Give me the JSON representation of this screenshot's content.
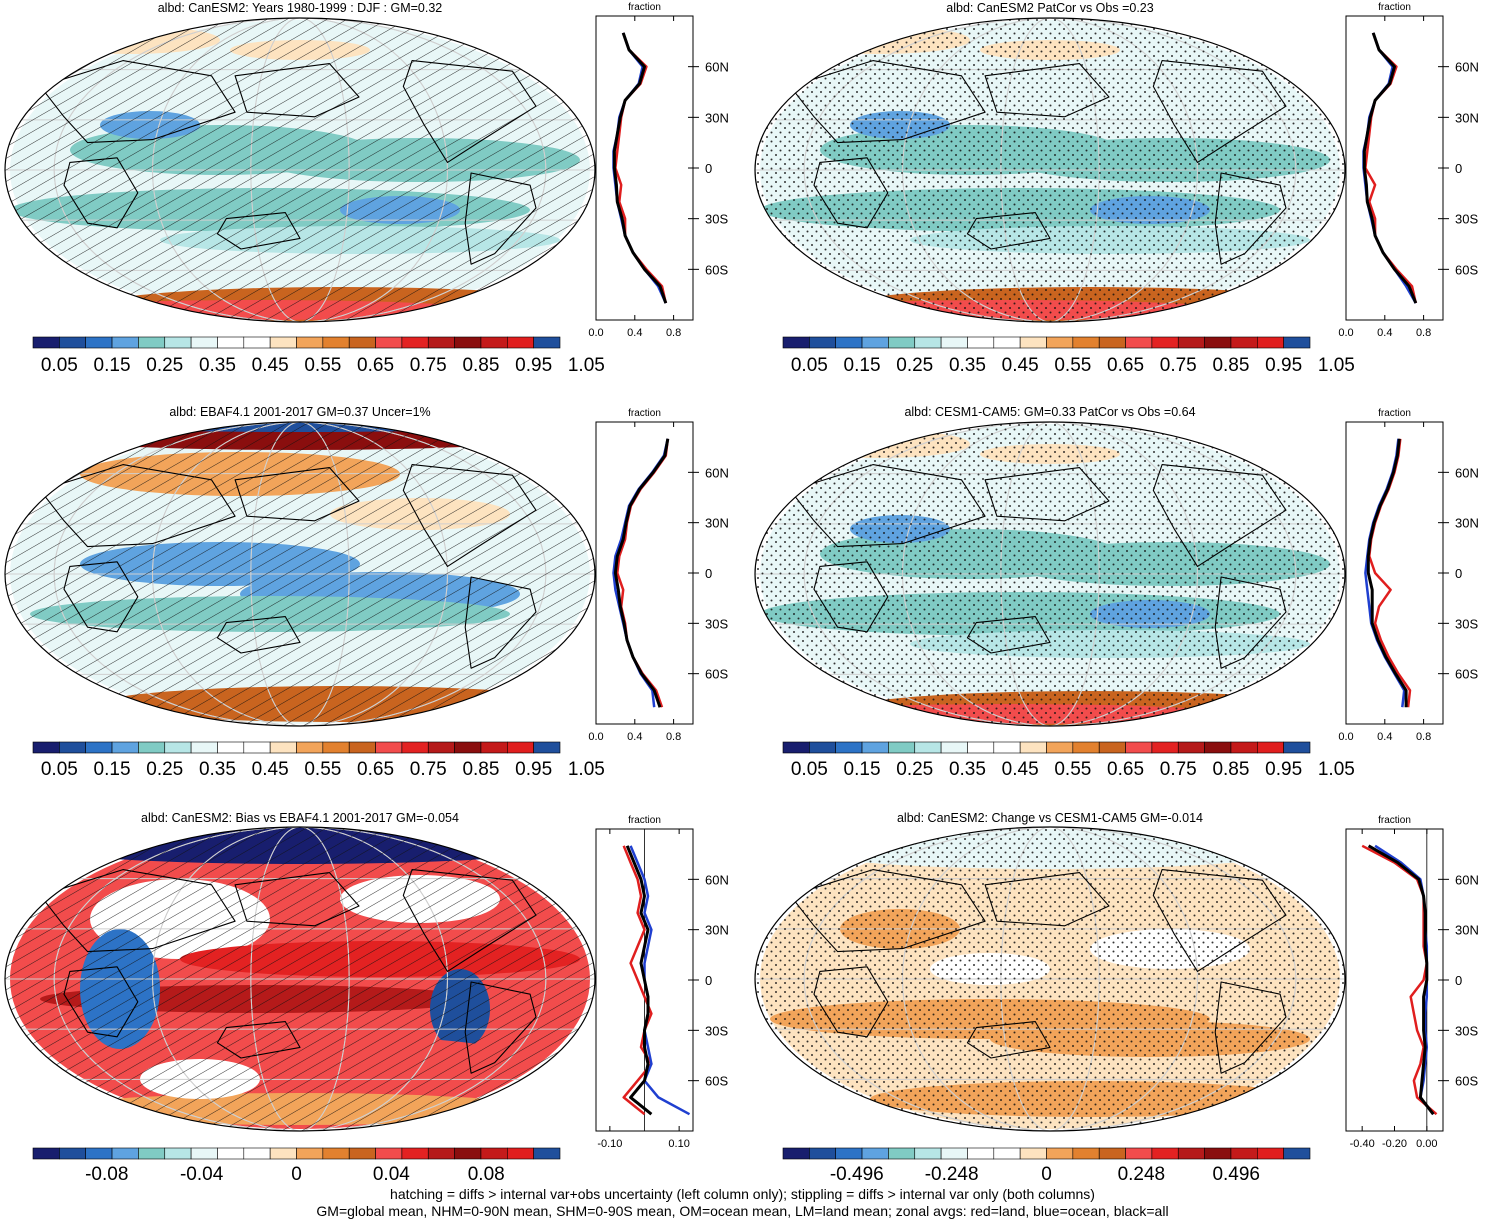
{
  "footnote": {
    "line1": "hatching = diffs > internal var+obs uncertainty (left column only); stippling = diffs > internal var only (both columns)",
    "line2": "GM=global mean, NHM=0-90N mean, SHM=0-90S mean, OM=ocean mean, LM=land mean; zonal avgs: red=land, blue=ocean, black=all"
  },
  "palettes": {
    "albedo": [
      "#181e6e",
      "#1f4f9c",
      "#2d73c6",
      "#5fa3e0",
      "#80cbc4",
      "#b7e6e6",
      "#e8f7f7",
      "#ffffff",
      "#ffffff",
      "#fde3c0",
      "#f2a45a",
      "#e2812f",
      "#c9641f",
      "#f24c4c",
      "#e32222",
      "#b51a1a",
      "#8a0e0e",
      "#c41a1a",
      "#e01e1e",
      "#1f4f9c"
    ],
    "diff": [
      "#181e6e",
      "#1f4f9c",
      "#2d73c6",
      "#5fa3e0",
      "#80cbc4",
      "#b7e6e6",
      "#e8f7f7",
      "#ffffff",
      "#ffffff",
      "#fde3c0",
      "#f2a45a",
      "#e2812f",
      "#c9641f",
      "#f24c4c",
      "#e32222",
      "#b51a1a",
      "#8a0e0e",
      "#c41a1a",
      "#e01e1e",
      "#1f4f9c"
    ]
  },
  "chart_data": [
    {
      "type": "heatmap",
      "title": "albd: CanESM2: Years 1980-1999 : DJF : GM=0.32",
      "map_overlay": "hatching",
      "colorbar": {
        "ticks": [
          "0.05",
          "0.15",
          "0.25",
          "0.35",
          "0.45",
          "0.55",
          "0.65",
          "0.75",
          "0.85",
          "0.95",
          "1.05"
        ],
        "palette": "albedo"
      },
      "zonal": {
        "label": "fraction",
        "xticks": [
          "0.0",
          "0.4",
          "0.8"
        ],
        "xlim": [
          0,
          1
        ],
        "lat_ticks": [
          "60N",
          "30N",
          "0",
          "30S",
          "60S"
        ],
        "lat_values": [
          -80,
          -70,
          -60,
          -50,
          -40,
          -30,
          -20,
          -10,
          0,
          10,
          20,
          30,
          40,
          50,
          60,
          70,
          80
        ],
        "series": [
          {
            "color": "#e01e1e",
            "values": [
              0.72,
              0.68,
              0.52,
              0.38,
              0.3,
              0.3,
              0.24,
              0.26,
              0.2,
              0.22,
              0.24,
              0.26,
              0.3,
              0.46,
              0.52,
              0.34,
              0.28
            ]
          },
          {
            "color": "#1f3fd0",
            "values": [
              0.72,
              0.64,
              0.5,
              0.38,
              0.3,
              0.26,
              0.22,
              0.2,
              0.18,
              0.18,
              0.22,
              0.24,
              0.3,
              0.44,
              0.48,
              0.34,
              0.28
            ]
          },
          {
            "color": "#000000",
            "values": [
              0.72,
              0.66,
              0.5,
              0.38,
              0.3,
              0.27,
              0.22,
              0.21,
              0.19,
              0.19,
              0.22,
              0.25,
              0.3,
              0.45,
              0.5,
              0.34,
              0.28
            ]
          }
        ]
      }
    },
    {
      "type": "heatmap",
      "title": "albd: CanESM2 PatCor vs Obs =0.23",
      "map_overlay": "stipple",
      "colorbar": {
        "ticks": [
          "0.05",
          "0.15",
          "0.25",
          "0.35",
          "0.45",
          "0.55",
          "0.65",
          "0.75",
          "0.85",
          "0.95",
          "1.05"
        ],
        "palette": "albedo"
      },
      "zonal": {
        "label": "fraction",
        "xticks": [
          "0.0",
          "0.4",
          "0.8"
        ],
        "xlim": [
          0,
          1
        ],
        "lat_ticks": [
          "60N",
          "30N",
          "0",
          "30S",
          "60S"
        ],
        "lat_values": [
          -80,
          -70,
          -60,
          -50,
          -40,
          -30,
          -20,
          -10,
          0,
          10,
          20,
          30,
          40,
          50,
          60,
          70,
          80
        ],
        "series": [
          {
            "color": "#e01e1e",
            "values": [
              0.72,
              0.68,
              0.52,
              0.38,
              0.3,
              0.3,
              0.24,
              0.3,
              0.2,
              0.22,
              0.24,
              0.26,
              0.3,
              0.46,
              0.52,
              0.34,
              0.28
            ]
          },
          {
            "color": "#1f3fd0",
            "values": [
              0.72,
              0.62,
              0.5,
              0.38,
              0.3,
              0.26,
              0.22,
              0.2,
              0.18,
              0.18,
              0.22,
              0.24,
              0.3,
              0.44,
              0.48,
              0.34,
              0.28
            ]
          },
          {
            "color": "#000000",
            "values": [
              0.72,
              0.65,
              0.5,
              0.38,
              0.3,
              0.27,
              0.22,
              0.21,
              0.19,
              0.19,
              0.22,
              0.25,
              0.3,
              0.45,
              0.5,
              0.34,
              0.28
            ]
          }
        ]
      }
    },
    {
      "type": "heatmap",
      "title": "albd: EBAF4.1 2001-2017 GM=0.37 Uncer=1%",
      "map_overlay": "hatching",
      "colorbar": {
        "ticks": [
          "0.05",
          "0.15",
          "0.25",
          "0.35",
          "0.45",
          "0.55",
          "0.65",
          "0.75",
          "0.85",
          "0.95",
          "1.05"
        ],
        "palette": "albedo"
      },
      "zonal": {
        "label": "fraction",
        "xticks": [
          "0.0",
          "0.4",
          "0.8"
        ],
        "xlim": [
          0,
          1
        ],
        "lat_ticks": [
          "60N",
          "30N",
          "0",
          "30S",
          "60S"
        ],
        "lat_values": [
          -80,
          -70,
          -60,
          -50,
          -40,
          -30,
          -20,
          -10,
          0,
          10,
          20,
          30,
          40,
          50,
          60,
          70,
          80
        ],
        "series": [
          {
            "color": "#e01e1e",
            "values": [
              0.68,
              0.62,
              0.48,
              0.38,
              0.32,
              0.3,
              0.26,
              0.28,
              0.22,
              0.24,
              0.3,
              0.32,
              0.36,
              0.46,
              0.6,
              0.72,
              0.74
            ]
          },
          {
            "color": "#1f3fd0",
            "values": [
              0.6,
              0.58,
              0.46,
              0.38,
              0.32,
              0.28,
              0.24,
              0.2,
              0.18,
              0.2,
              0.26,
              0.3,
              0.34,
              0.44,
              0.58,
              0.7,
              0.74
            ]
          },
          {
            "color": "#000000",
            "values": [
              0.66,
              0.6,
              0.47,
              0.38,
              0.32,
              0.29,
              0.25,
              0.23,
              0.2,
              0.22,
              0.28,
              0.31,
              0.35,
              0.45,
              0.59,
              0.71,
              0.74
            ]
          }
        ]
      }
    },
    {
      "type": "heatmap",
      "title": "albd: CESM1-CAM5: GM=0.33 PatCor vs Obs =0.64",
      "map_overlay": "stipple",
      "colorbar": {
        "ticks": [
          "0.05",
          "0.15",
          "0.25",
          "0.35",
          "0.45",
          "0.55",
          "0.65",
          "0.75",
          "0.85",
          "0.95",
          "1.05"
        ],
        "palette": "albedo"
      },
      "zonal": {
        "label": "fraction",
        "xticks": [
          "0.0",
          "0.4",
          "0.8"
        ],
        "xlim": [
          0,
          1
        ],
        "lat_ticks": [
          "60N",
          "30N",
          "0",
          "30S",
          "60S"
        ],
        "lat_values": [
          -80,
          -70,
          -60,
          -50,
          -40,
          -30,
          -20,
          -10,
          0,
          10,
          20,
          30,
          40,
          50,
          60,
          70,
          80
        ],
        "series": [
          {
            "color": "#e01e1e",
            "values": [
              0.64,
              0.66,
              0.54,
              0.44,
              0.36,
              0.3,
              0.34,
              0.46,
              0.3,
              0.24,
              0.26,
              0.3,
              0.36,
              0.44,
              0.5,
              0.54,
              0.56
            ]
          },
          {
            "color": "#1f3fd0",
            "values": [
              0.58,
              0.6,
              0.5,
              0.4,
              0.32,
              0.26,
              0.24,
              0.22,
              0.2,
              0.22,
              0.24,
              0.28,
              0.34,
              0.42,
              0.48,
              0.52,
              0.54
            ]
          },
          {
            "color": "#000000",
            "values": [
              0.62,
              0.62,
              0.51,
              0.41,
              0.33,
              0.27,
              0.27,
              0.27,
              0.23,
              0.23,
              0.25,
              0.29,
              0.35,
              0.43,
              0.49,
              0.53,
              0.55
            ]
          }
        ]
      }
    },
    {
      "type": "heatmap",
      "title": "albd: CanESM2: Bias vs EBAF4.1 2001-2017 GM=-0.054",
      "map_overlay": "hatching",
      "colorbar": {
        "ticks": [
          "-0.08",
          "-0.04",
          "0",
          "0.04",
          "0.08"
        ],
        "palette": "diff"
      },
      "zonal": {
        "label": "fraction",
        "xticks": [
          "-0.10",
          "0.10"
        ],
        "xlim": [
          -0.14,
          0.14
        ],
        "zero_line": 0,
        "lat_ticks": [
          "60N",
          "30N",
          "0",
          "30S",
          "60S"
        ],
        "lat_values": [
          -80,
          -70,
          -60,
          -50,
          -40,
          -30,
          -20,
          -10,
          0,
          10,
          20,
          30,
          40,
          50,
          60,
          70,
          80
        ],
        "series": [
          {
            "color": "#e01e1e",
            "values": [
              0.0,
              -0.06,
              -0.02,
              0.02,
              -0.01,
              0.0,
              0.02,
              0.0,
              -0.02,
              -0.04,
              -0.02,
              0.0,
              -0.02,
              -0.01,
              -0.02,
              -0.04,
              -0.06
            ]
          },
          {
            "color": "#1f3fd0",
            "values": [
              0.13,
              0.04,
              0.0,
              0.02,
              0.01,
              0.0,
              0.01,
              0.01,
              0.0,
              0.0,
              0.01,
              0.02,
              0.0,
              0.01,
              0.0,
              -0.02,
              -0.04
            ]
          },
          {
            "color": "#000000",
            "values": [
              0.02,
              -0.04,
              0.0,
              0.01,
              0.0,
              0.0,
              0.01,
              0.01,
              0.0,
              -0.01,
              0.0,
              0.01,
              -0.01,
              0.0,
              -0.01,
              -0.03,
              -0.05
            ]
          }
        ]
      }
    },
    {
      "type": "heatmap",
      "title": "albd: CanESM2: Change vs CESM1-CAM5 GM=-0.014",
      "map_overlay": "stipple",
      "colorbar": {
        "ticks": [
          "-0.496",
          "-0.248",
          "0",
          "0.248",
          "0.496"
        ],
        "palette": "diff"
      },
      "zonal": {
        "label": "fraction",
        "xticks": [
          "-0.40",
          "-0.20",
          "0.00"
        ],
        "xlim": [
          -0.5,
          0.1
        ],
        "zero_line": 0,
        "lat_ticks": [
          "60N",
          "30N",
          "0",
          "30S",
          "60S"
        ],
        "lat_values": [
          -80,
          -70,
          -60,
          -50,
          -40,
          -30,
          -20,
          -10,
          0,
          10,
          20,
          30,
          40,
          50,
          60,
          70,
          80
        ],
        "series": [
          {
            "color": "#e01e1e",
            "values": [
              0.06,
              -0.06,
              -0.08,
              -0.04,
              -0.02,
              -0.06,
              -0.08,
              -0.1,
              -0.02,
              0.0,
              -0.02,
              -0.02,
              -0.02,
              -0.02,
              -0.06,
              -0.2,
              -0.4
            ]
          },
          {
            "color": "#1f3fd0",
            "values": [
              0.04,
              -0.04,
              -0.02,
              -0.01,
              0.0,
              -0.01,
              -0.01,
              0.0,
              0.0,
              0.0,
              0.0,
              -0.01,
              -0.01,
              -0.02,
              -0.04,
              -0.16,
              -0.32
            ]
          },
          {
            "color": "#000000",
            "values": [
              0.04,
              -0.04,
              -0.03,
              -0.02,
              -0.01,
              -0.02,
              -0.02,
              -0.02,
              0.0,
              0.0,
              -0.01,
              -0.01,
              -0.01,
              -0.02,
              -0.05,
              -0.18,
              -0.36
            ]
          }
        ]
      }
    }
  ]
}
